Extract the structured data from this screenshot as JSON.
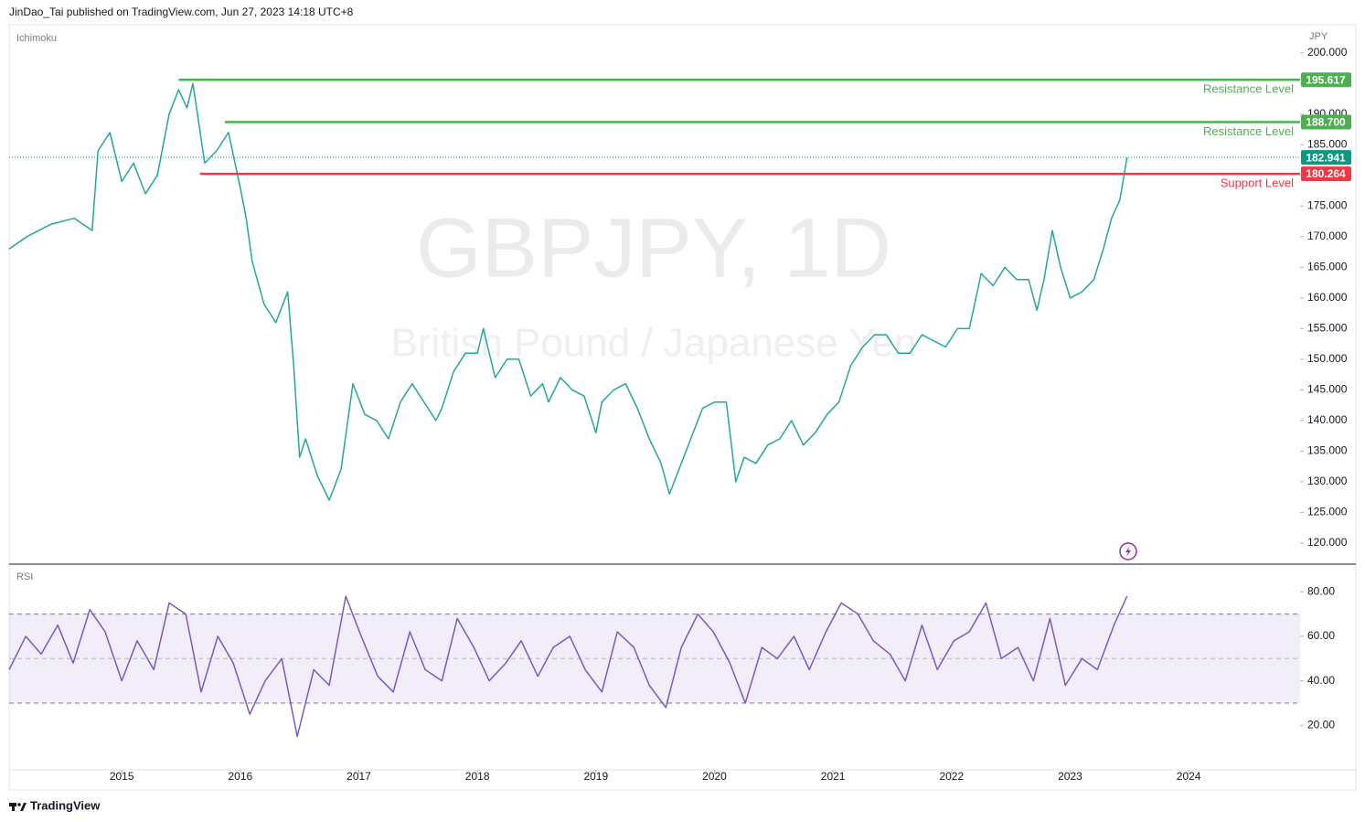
{
  "header": {
    "attribution": "JinDao_Tai published on TradingView.com, Jun 27, 2023 14:18 UTC+8"
  },
  "footer": {
    "brand": "TradingView"
  },
  "chart_data": [
    {
      "type": "line",
      "indicator_label": "Ichimoku",
      "watermark": "GBPJPY, 1D",
      "watermark_subtitle": "British Pound / Japanese Yen",
      "y_unit_label": "JPY",
      "color": "#26a69a",
      "xlim": [
        2014.05,
        2024.94
      ],
      "xticks": [
        2015,
        2016,
        2017,
        2018,
        2019,
        2020,
        2021,
        2022,
        2023,
        2024
      ],
      "ylim": [
        116.7,
        204.6
      ],
      "yticks": [
        {
          "value": 120,
          "label": "120.000"
        },
        {
          "value": 125,
          "label": "125.000"
        },
        {
          "value": 130,
          "label": "130.000"
        },
        {
          "value": 135,
          "label": "135.000"
        },
        {
          "value": 140,
          "label": "140.000"
        },
        {
          "value": 145,
          "label": "145.000"
        },
        {
          "value": 150,
          "label": "150.000"
        },
        {
          "value": 155,
          "label": "155.000"
        },
        {
          "value": 160,
          "label": "160.000"
        },
        {
          "value": 165,
          "label": "165.000"
        },
        {
          "value": 170,
          "label": "170.000"
        },
        {
          "value": 175,
          "label": "175.000"
        },
        {
          "value": 180,
          "label": "180.000"
        },
        {
          "value": 185,
          "label": "185.000"
        },
        {
          "value": 190,
          "label": "190.000"
        },
        {
          "value": 195,
          "label": "195.000"
        },
        {
          "value": 200,
          "label": "200.000"
        }
      ],
      "x": [
        2014.05,
        2014.2,
        2014.4,
        2014.6,
        2014.75,
        2014.8,
        2014.9,
        2015.0,
        2015.1,
        2015.2,
        2015.3,
        2015.4,
        2015.48,
        2015.55,
        2015.6,
        2015.7,
        2015.8,
        2015.9,
        2016.0,
        2016.05,
        2016.1,
        2016.2,
        2016.3,
        2016.4,
        2016.45,
        2016.5,
        2016.55,
        2016.65,
        2016.75,
        2016.85,
        2016.95,
        2017.05,
        2017.15,
        2017.25,
        2017.35,
        2017.45,
        2017.55,
        2017.65,
        2017.7,
        2017.8,
        2017.9,
        2018.0,
        2018.05,
        2018.15,
        2018.25,
        2018.35,
        2018.45,
        2018.55,
        2018.6,
        2018.7,
        2018.8,
        2018.9,
        2019.0,
        2019.05,
        2019.15,
        2019.25,
        2019.35,
        2019.45,
        2019.55,
        2019.62,
        2019.7,
        2019.8,
        2019.9,
        2020.0,
        2020.1,
        2020.18,
        2020.25,
        2020.35,
        2020.45,
        2020.55,
        2020.65,
        2020.75,
        2020.85,
        2020.95,
        2021.05,
        2021.15,
        2021.25,
        2021.35,
        2021.45,
        2021.55,
        2021.65,
        2021.75,
        2021.85,
        2021.95,
        2022.05,
        2022.15,
        2022.25,
        2022.35,
        2022.45,
        2022.55,
        2022.65,
        2022.72,
        2022.78,
        2022.85,
        2022.92,
        2023.0,
        2023.1,
        2023.2,
        2023.28,
        2023.35,
        2023.42,
        2023.48
      ],
      "values": [
        168,
        170,
        172,
        173,
        171,
        184,
        187,
        179,
        182,
        177,
        180,
        190,
        194,
        191,
        195,
        182,
        184,
        187,
        178,
        173,
        166,
        159,
        156,
        161,
        149,
        134,
        137,
        131,
        127,
        132,
        146,
        141,
        140,
        137,
        143,
        146,
        143,
        140,
        142,
        148,
        151,
        151,
        155,
        147,
        150,
        150,
        144,
        146,
        143,
        147,
        145,
        144,
        138,
        143,
        145,
        146,
        142,
        137,
        133,
        128,
        132,
        137,
        142,
        143,
        143,
        130,
        134,
        133,
        136,
        137,
        140,
        136,
        138,
        141,
        143,
        149,
        152,
        154,
        154,
        151,
        151,
        154,
        153,
        152,
        155,
        155,
        164,
        162,
        165,
        163,
        163,
        158,
        163,
        171,
        165,
        160,
        161,
        163,
        168,
        173,
        176,
        182.941
      ],
      "levels": [
        {
          "name": "Resistance Level",
          "value": 195.617,
          "x_start": 2015.48,
          "color": "#4caf50"
        },
        {
          "name": "Resistance Level",
          "value": 188.7,
          "value_label": "188.700",
          "x_start": 2015.87,
          "color": "#4caf50"
        },
        {
          "name": "Support Level",
          "value": 180.264,
          "x_start": 2015.66,
          "color": "#f23645"
        }
      ],
      "last_price": 182.941,
      "last_price_color": "#089981"
    },
    {
      "type": "line",
      "indicator_label": "RSI",
      "color": "#7e57c2",
      "xlim": [
        2014.05,
        2024.94
      ],
      "ylim": [
        0,
        92
      ],
      "yticks": [
        {
          "value": 20,
          "label": "20.00"
        },
        {
          "value": 40,
          "label": "40.00"
        },
        {
          "value": 60,
          "label": "60.00"
        },
        {
          "value": 80,
          "label": "80.00"
        }
      ],
      "bands": [
        30,
        70
      ],
      "midline": 50,
      "x": [
        2014.05,
        2014.19,
        2014.32,
        2014.46,
        2014.59,
        2014.73,
        2014.86,
        2015.0,
        2015.13,
        2015.27,
        2015.4,
        2015.54,
        2015.67,
        2015.81,
        2015.94,
        2016.08,
        2016.21,
        2016.35,
        2016.48,
        2016.62,
        2016.75,
        2016.89,
        2017.02,
        2017.16,
        2017.29,
        2017.43,
        2017.56,
        2017.7,
        2017.83,
        2017.97,
        2018.1,
        2018.24,
        2018.37,
        2018.51,
        2018.64,
        2018.78,
        2018.91,
        2019.05,
        2019.18,
        2019.32,
        2019.45,
        2019.59,
        2019.72,
        2019.86,
        2019.99,
        2020.13,
        2020.26,
        2020.4,
        2020.53,
        2020.67,
        2020.8,
        2020.94,
        2021.07,
        2021.21,
        2021.34,
        2021.48,
        2021.61,
        2021.75,
        2021.88,
        2022.02,
        2022.15,
        2022.29,
        2022.42,
        2022.56,
        2022.69,
        2022.83,
        2022.96,
        2023.1,
        2023.23,
        2023.37,
        2023.48
      ],
      "values": [
        45,
        60,
        52,
        65,
        48,
        72,
        62,
        40,
        58,
        45,
        75,
        70,
        35,
        60,
        48,
        25,
        40,
        50,
        15,
        45,
        38,
        78,
        60,
        42,
        35,
        62,
        45,
        40,
        68,
        55,
        40,
        48,
        58,
        42,
        55,
        60,
        45,
        35,
        62,
        55,
        38,
        28,
        55,
        70,
        62,
        48,
        30,
        55,
        50,
        60,
        45,
        62,
        75,
        70,
        58,
        52,
        40,
        65,
        45,
        58,
        62,
        75,
        50,
        55,
        40,
        68,
        38,
        50,
        45,
        65,
        78
      ]
    }
  ]
}
